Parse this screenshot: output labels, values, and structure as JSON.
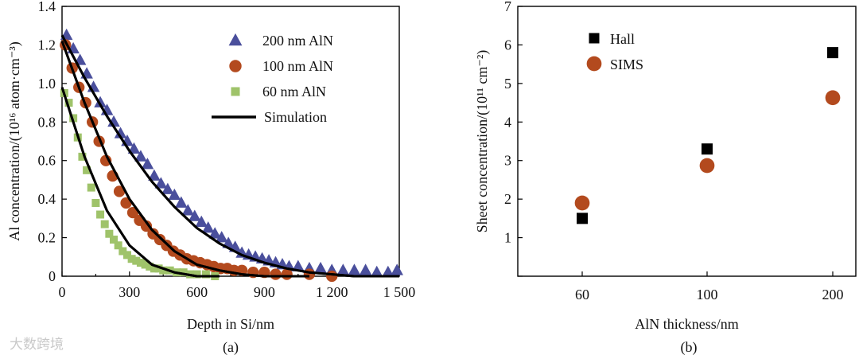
{
  "watermark": "大数跨境",
  "chart_data": [
    {
      "panel": "(a)",
      "type": "scatter",
      "xlabel": "Depth in Si/nm",
      "ylabel": "Al concentration/(10¹⁶ atom·cm⁻³)",
      "xlim": [
        0,
        1500
      ],
      "ylim": [
        0,
        1.4
      ],
      "xticks": [
        0,
        300,
        600,
        900,
        1200,
        1500
      ],
      "xtick_labels": [
        "0",
        "300",
        "600",
        "900",
        "1 200",
        "1 500"
      ],
      "yticks": [
        0,
        0.2,
        0.4,
        0.6,
        0.8,
        1.0,
        1.2,
        1.4
      ],
      "ytick_labels": [
        "0",
        "0.2",
        "0.4",
        "0.6",
        "0.8",
        "1.0",
        "1.2",
        "1.4"
      ],
      "series": [
        {
          "name": "200 nm AlN",
          "marker": "triangle",
          "color": "#4a4f9c",
          "x": [
            20,
            50,
            80,
            110,
            140,
            170,
            200,
            230,
            260,
            290,
            320,
            350,
            380,
            410,
            440,
            470,
            500,
            530,
            560,
            590,
            620,
            650,
            680,
            710,
            740,
            770,
            800,
            830,
            860,
            890,
            920,
            950,
            980,
            1010,
            1050,
            1100,
            1150,
            1200,
            1250,
            1300,
            1350,
            1400,
            1450,
            1490
          ],
          "y": [
            1.25,
            1.18,
            1.12,
            1.05,
            0.98,
            0.9,
            0.86,
            0.8,
            0.74,
            0.7,
            0.66,
            0.62,
            0.58,
            0.52,
            0.48,
            0.45,
            0.42,
            0.38,
            0.34,
            0.31,
            0.28,
            0.25,
            0.22,
            0.2,
            0.17,
            0.15,
            0.12,
            0.11,
            0.1,
            0.09,
            0.08,
            0.07,
            0.06,
            0.05,
            0.05,
            0.04,
            0.04,
            0.03,
            0.03,
            0.03,
            0.03,
            0.02,
            0.02,
            0.03
          ]
        },
        {
          "name": "100 nm AlN",
          "marker": "circle",
          "color": "#b34a1e",
          "x": [
            15,
            45,
            75,
            105,
            135,
            165,
            195,
            225,
            255,
            285,
            315,
            345,
            375,
            405,
            435,
            465,
            495,
            525,
            555,
            585,
            615,
            645,
            675,
            705,
            735,
            765,
            800,
            850,
            900,
            950,
            1000,
            1100,
            1200
          ],
          "y": [
            1.2,
            1.08,
            0.98,
            0.9,
            0.8,
            0.7,
            0.6,
            0.52,
            0.44,
            0.38,
            0.33,
            0.29,
            0.26,
            0.22,
            0.19,
            0.16,
            0.13,
            0.11,
            0.09,
            0.08,
            0.07,
            0.06,
            0.05,
            0.04,
            0.04,
            0.03,
            0.03,
            0.02,
            0.02,
            0.01,
            0.01,
            0.01,
            0.0
          ]
        },
        {
          "name": "60 nm AlN",
          "marker": "square",
          "color": "#9fc36a",
          "x": [
            10,
            30,
            50,
            70,
            90,
            110,
            130,
            150,
            170,
            190,
            210,
            230,
            250,
            270,
            290,
            310,
            330,
            350,
            370,
            390,
            410,
            430,
            450,
            480,
            510,
            540,
            570,
            600,
            640,
            680
          ],
          "y": [
            0.95,
            0.9,
            0.82,
            0.72,
            0.62,
            0.55,
            0.46,
            0.38,
            0.32,
            0.27,
            0.22,
            0.19,
            0.16,
            0.13,
            0.11,
            0.09,
            0.08,
            0.07,
            0.06,
            0.05,
            0.04,
            0.04,
            0.03,
            0.03,
            0.02,
            0.02,
            0.01,
            0.01,
            0.01,
            0.0
          ]
        },
        {
          "name": "Simulation",
          "marker": "line",
          "color": "#000000",
          "curves": [
            {
              "x": [
                0,
                100,
                200,
                300,
                400,
                500,
                600,
                700,
                800,
                900,
                1000,
                1100,
                1200,
                1300,
                1400,
                1500
              ],
              "y": [
                1.25,
                1.03,
                0.83,
                0.65,
                0.49,
                0.36,
                0.25,
                0.17,
                0.11,
                0.07,
                0.04,
                0.02,
                0.01,
                0.0,
                0.0,
                0.0
              ]
            },
            {
              "x": [
                0,
                100,
                200,
                300,
                400,
                500,
                600,
                700,
                800,
                900,
                1000,
                1100
              ],
              "y": [
                1.22,
                0.9,
                0.62,
                0.4,
                0.24,
                0.13,
                0.06,
                0.03,
                0.01,
                0.0,
                0.0,
                0.0
              ]
            },
            {
              "x": [
                0,
                100,
                200,
                300,
                400,
                500,
                600,
                700
              ],
              "y": [
                0.98,
                0.62,
                0.34,
                0.16,
                0.06,
                0.02,
                0.0,
                0.0
              ]
            }
          ]
        }
      ],
      "legend": "top-right"
    },
    {
      "panel": "(b)",
      "type": "scatter",
      "xlabel": "AlN thickness/nm",
      "ylabel": "Sheet concentration/(10¹¹ cm⁻²)",
      "categories": [
        "60",
        "100",
        "200"
      ],
      "ylim": [
        0,
        7
      ],
      "yticks": [
        0,
        1,
        2,
        3,
        4,
        5,
        6,
        7
      ],
      "ytick_labels": [
        "0",
        "1",
        "2",
        "3",
        "4",
        "5",
        "6",
        "7"
      ],
      "series": [
        {
          "name": "Hall",
          "marker": "square",
          "color": "#000000",
          "values": [
            1.5,
            3.3,
            5.8
          ]
        },
        {
          "name": "SIMS",
          "marker": "circle",
          "color": "#b34a1e",
          "values": [
            1.9,
            2.87,
            4.63
          ]
        }
      ],
      "legend": "top-left"
    }
  ]
}
